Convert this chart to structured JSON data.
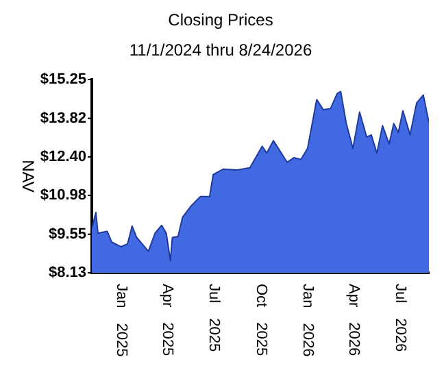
{
  "chart_data": {
    "type": "area",
    "title": "Closing Prices",
    "subtitle": "11/1/2024 thru 8/24/2026",
    "ylabel": "NAV",
    "x": [
      "2024-11-01",
      "2024-11-09",
      "2024-11-13",
      "2024-12-01",
      "2024-12-10",
      "2024-12-28",
      "2025-01-10",
      "2025-01-19",
      "2025-01-28",
      "2025-02-20",
      "2025-03-05",
      "2025-03-18",
      "2025-03-27",
      "2025-04-04",
      "2025-04-08",
      "2025-04-19",
      "2025-04-28",
      "2025-05-15",
      "2025-06-02",
      "2025-06-20",
      "2025-06-27",
      "2025-07-17",
      "2025-08-13",
      "2025-09-07",
      "2025-10-01",
      "2025-10-10",
      "2025-10-23",
      "2025-11-19",
      "2025-12-02",
      "2025-12-16",
      "2025-12-29",
      "2026-01-16",
      "2026-01-29",
      "2026-02-12",
      "2026-02-25",
      "2026-03-04",
      "2026-03-15",
      "2026-03-28",
      "2026-04-10",
      "2026-04-24",
      "2026-05-03",
      "2026-05-14",
      "2026-05-25",
      "2026-06-07",
      "2026-06-16",
      "2026-06-25",
      "2026-07-04",
      "2026-07-18",
      "2026-07-31",
      "2026-08-13",
      "2026-08-24"
    ],
    "series": [
      {
        "color": "#4169e1",
        "values": [
          9.76,
          10.35,
          9.59,
          9.66,
          9.26,
          9.09,
          9.19,
          9.85,
          9.43,
          8.92,
          9.59,
          9.88,
          9.59,
          8.58,
          9.43,
          9.47,
          10.18,
          10.6,
          10.94,
          10.94,
          11.75,
          11.95,
          11.92,
          12.0,
          12.79,
          12.54,
          13.0,
          12.2,
          12.37,
          12.3,
          12.71,
          14.51,
          14.14,
          14.18,
          14.73,
          14.81,
          13.63,
          12.71,
          14.05,
          13.13,
          13.21,
          12.54,
          13.55,
          12.88,
          13.63,
          13.3,
          14.1,
          13.21,
          14.39,
          14.68,
          13.67
        ]
      }
    ],
    "xlim": [
      "2024-11-01",
      "2026-08-24"
    ],
    "xticks": [
      {
        "value": "2025-01-01",
        "label": "Jan 2025"
      },
      {
        "value": "2025-04-01",
        "label": "Apr 2025"
      },
      {
        "value": "2025-07-01",
        "label": "Jul 2025"
      },
      {
        "value": "2025-10-01",
        "label": "Oct 2025"
      },
      {
        "value": "2026-01-01",
        "label": "Jan 2026"
      },
      {
        "value": "2026-04-01",
        "label": "Apr 2026"
      },
      {
        "value": "2026-07-01",
        "label": "Jul 2026"
      }
    ],
    "ylim": [
      8.13,
      15.25
    ],
    "yticks": [
      {
        "value": 8.13,
        "label": "$8.13"
      },
      {
        "value": 9.55,
        "label": "$9.55"
      },
      {
        "value": 10.98,
        "label": "$10.98"
      },
      {
        "value": 12.4,
        "label": "$12.40"
      },
      {
        "value": 13.82,
        "label": "$13.82"
      },
      {
        "value": 15.25,
        "label": "$15.25"
      }
    ],
    "grid": false,
    "legend": false,
    "marker": "none"
  }
}
